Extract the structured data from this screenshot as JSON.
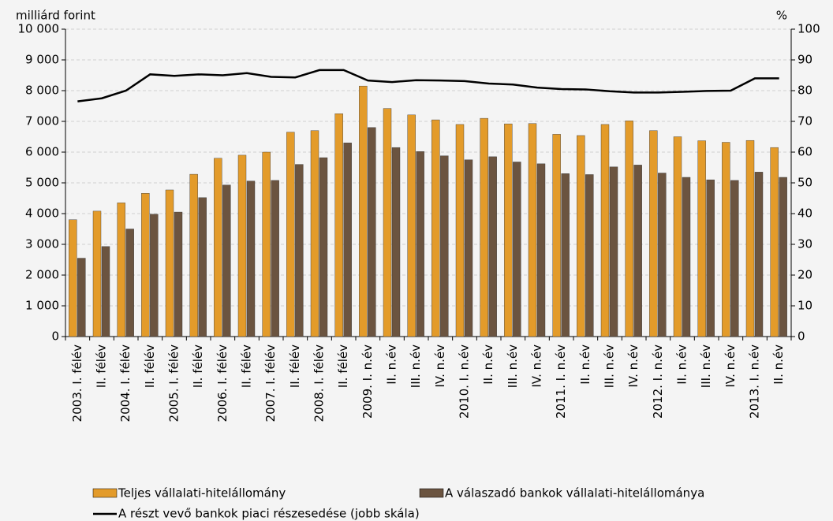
{
  "chart_data": {
    "type": "bar",
    "y_label": "milliárd forint",
    "y2_label": "%",
    "categories": [
      "2003. I. félév",
      "II. félév",
      "2004. I. félév",
      "II. félév",
      "2005. I. félév",
      "II. félév",
      "2006. I. félév",
      "II. félév",
      "2007. I. félév",
      "II. félév",
      "2008. I. félév",
      "II. félév",
      "2009. I. n.év",
      "II. n.év",
      "III. n.év",
      "IV. n.év",
      "2010. I. n.év",
      "II. n.év",
      "III. n.év",
      "IV. n.év",
      "2011. I. n.év",
      "II. n.év",
      "III. n.év",
      "IV. n.év",
      "2012. I. n.év",
      "II. n.év",
      "III. n.év",
      "IV. n.év",
      "2013. I. n.év",
      "II. n.év"
    ],
    "series": [
      {
        "name": "Teljes vállalati-hitelállomány",
        "type": "bar",
        "color": "#e39b2a",
        "values": [
          3800,
          4080,
          4350,
          4660,
          4770,
          5280,
          5800,
          5900,
          6000,
          6650,
          6700,
          7250,
          8150,
          7420,
          7210,
          7050,
          6900,
          7100,
          6920,
          6930,
          6580,
          6540,
          6900,
          7020,
          6700,
          6500,
          6370,
          6320,
          6380,
          6150
        ]
      },
      {
        "name": "A válaszadó bankok vállalati-hitelállománya",
        "type": "bar",
        "color": "#6b5440",
        "values": [
          2550,
          2930,
          3500,
          3980,
          4050,
          4520,
          4930,
          5060,
          5080,
          5600,
          5820,
          6300,
          6800,
          6150,
          6020,
          5880,
          5750,
          5850,
          5680,
          5620,
          5300,
          5270,
          5520,
          5580,
          5320,
          5180,
          5100,
          5080,
          5350,
          5180
        ]
      },
      {
        "name": "A részt vevő bankok piaci részesedése (jobb skála)",
        "type": "line",
        "axis": "y2",
        "color": "#000000",
        "values": [
          76.5,
          77.5,
          80,
          85.3,
          84.8,
          85.3,
          85,
          85.7,
          84.5,
          84.3,
          86.7,
          86.7,
          83.3,
          82.8,
          83.4,
          83.3,
          83.1,
          82.3,
          82,
          81,
          80.5,
          80.4,
          79.8,
          79.4,
          79.4,
          79.6,
          79.9,
          80,
          84,
          84
        ]
      }
    ],
    "ylim": [
      0,
      10000
    ],
    "yticks": [
      0,
      {
        "value": 1000,
        "label": "1 000"
      },
      {
        "value": 2000,
        "label": "2 000"
      },
      {
        "value": 3000,
        "label": "3 000"
      },
      {
        "value": 4000,
        "label": "4 000"
      },
      {
        "value": 5000,
        "label": "5 000"
      },
      {
        "value": 6000,
        "label": "6 000"
      },
      {
        "value": 7000,
        "label": "7 000"
      },
      {
        "value": 8000,
        "label": "8 000"
      },
      {
        "value": 9000,
        "label": "9 000"
      },
      {
        "value": 10000,
        "label": "10 000"
      }
    ],
    "y2lim": [
      0,
      100
    ],
    "y2ticks": [
      0,
      10,
      20,
      30,
      40,
      50,
      60,
      70,
      80,
      90,
      100
    ],
    "grid": true
  }
}
